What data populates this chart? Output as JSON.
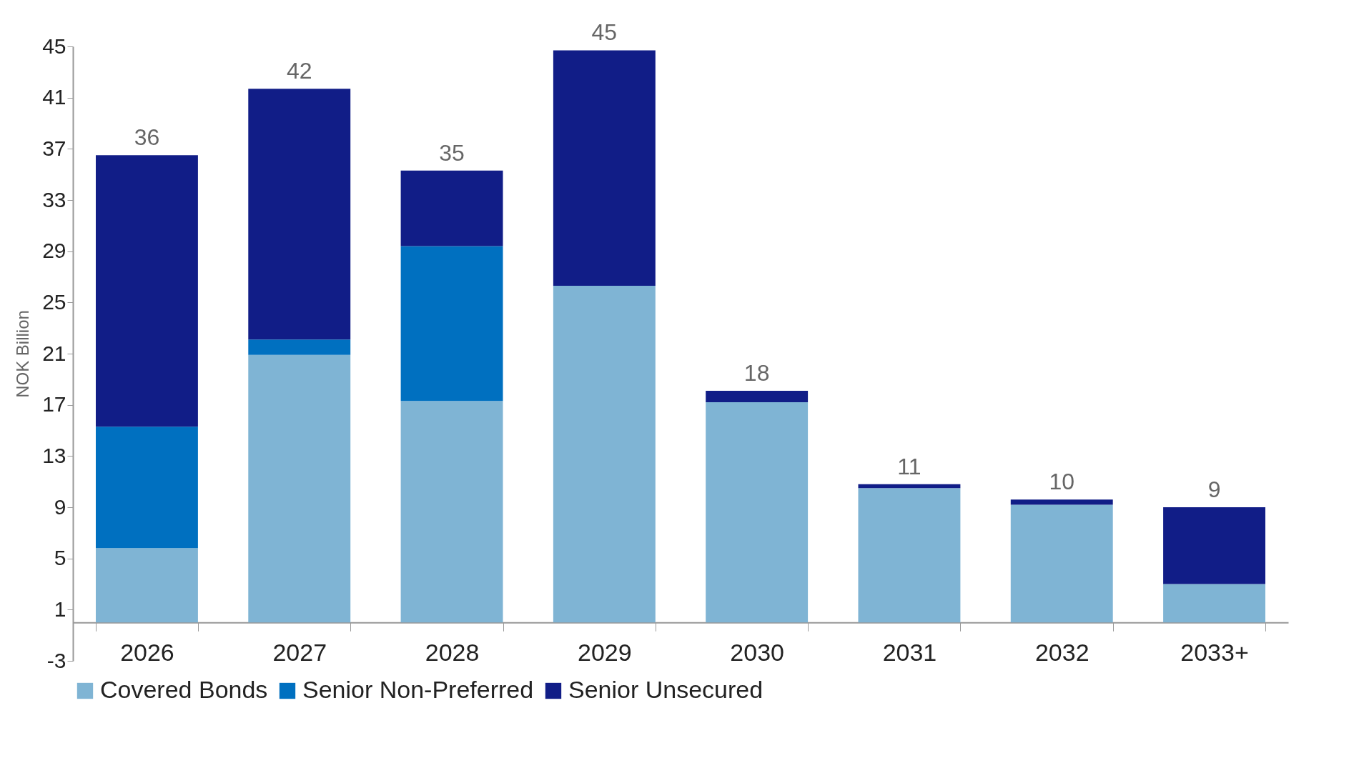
{
  "chart_data": {
    "type": "bar",
    "stacked": true,
    "ylabel": "NOK Billion",
    "categories": [
      "2026",
      "2027",
      "2028",
      "2029",
      "2030",
      "2031",
      "2032",
      "2033+"
    ],
    "series": [
      {
        "name": "Covered Bonds",
        "color": "#7fb4d4",
        "values": [
          5.8,
          20.9,
          17.3,
          26.3,
          17.2,
          10.5,
          9.2,
          3.0
        ]
      },
      {
        "name": "Senior Non-Preferred",
        "color": "#0070c0",
        "values": [
          9.5,
          1.2,
          12.1,
          0,
          0,
          0,
          0,
          0
        ]
      },
      {
        "name": "Senior Unsecured",
        "color": "#111d87",
        "values": [
          21.2,
          19.6,
          5.9,
          18.4,
          0.9,
          0.3,
          0.4,
          6.0
        ]
      }
    ],
    "totals": [
      "36",
      "42",
      "35",
      "45",
      "18",
      "11",
      "10",
      "9"
    ],
    "ylim": [
      -3,
      45
    ],
    "yticks": [
      -3,
      1,
      5,
      9,
      13,
      17,
      21,
      25,
      29,
      33,
      37,
      41,
      45
    ],
    "grid": false,
    "legend": "bottom"
  }
}
